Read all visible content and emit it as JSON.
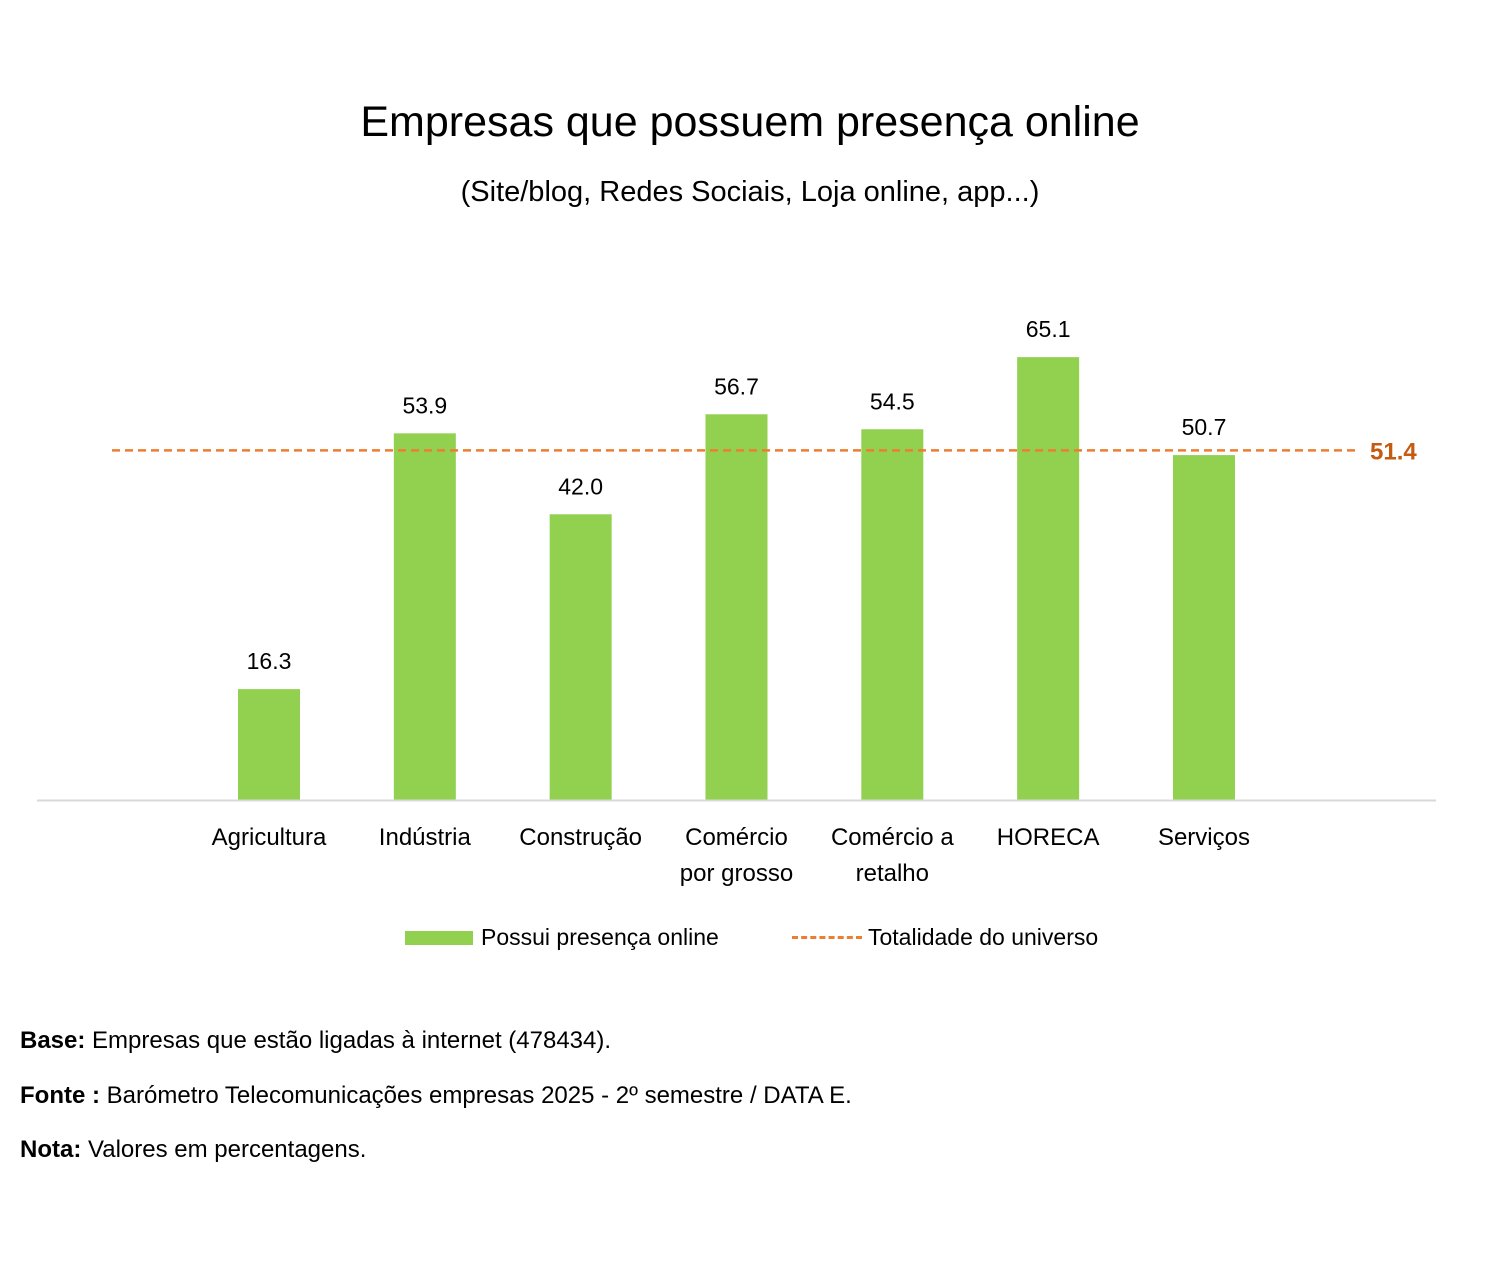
{
  "chart_data": {
    "type": "bar",
    "title": "Empresas que possuem presença online",
    "subtitle": "(Site/blog, Redes Sociais, Loja online, app...)",
    "categories": [
      "Agricultura",
      "Indústria",
      "Construção",
      "Comércio por grosso",
      "Comércio a retalho",
      "HORECA",
      "Serviços"
    ],
    "category_lines": [
      [
        "Agricultura"
      ],
      [
        "Indústria"
      ],
      [
        "Construção"
      ],
      [
        "Comércio",
        "por grosso"
      ],
      [
        "Comércio a",
        "retalho"
      ],
      [
        "HORECA"
      ],
      [
        "Serviços"
      ]
    ],
    "series": [
      {
        "name": "Possui presença online",
        "values": [
          16.3,
          53.9,
          42.0,
          56.7,
          54.5,
          65.1,
          50.7
        ],
        "labels": [
          "16.3",
          "53.9",
          "42.0",
          "56.7",
          "54.5",
          "65.1",
          "50.7"
        ],
        "color": "#92D050"
      }
    ],
    "reference_line": {
      "name": "Totalidade do universo",
      "value": 51.4,
      "label": "51.4",
      "color": "#ED7D31",
      "label_color": "#C55A11"
    },
    "ylim": [
      0,
      73.5
    ],
    "grid": false,
    "legend": "bottom",
    "axis_color": "#D9D9D9"
  },
  "notes": [
    {
      "key": "Base:",
      "text": " Empresas que estão ligadas à internet (478434)."
    },
    {
      "key": "Fonte :",
      "text": " Barómetro Telecomunicações empresas 2025 - 2º semestre / DATA E."
    },
    {
      "key": "Nota:",
      "text": " Valores em percentagens."
    }
  ]
}
